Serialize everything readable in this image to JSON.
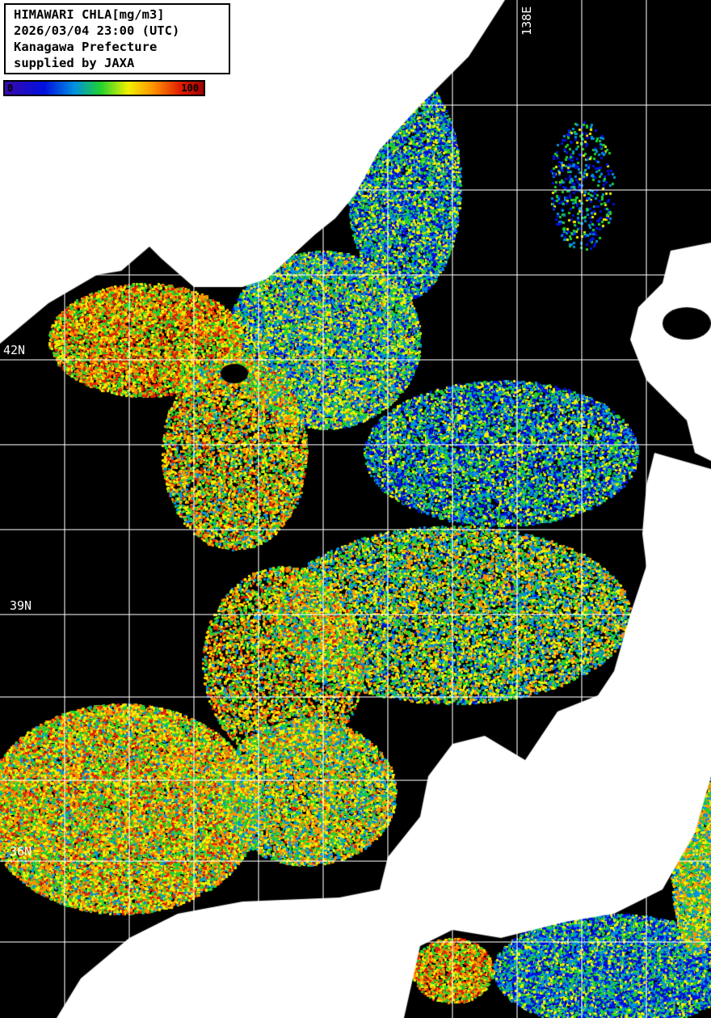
{
  "header": {
    "title": "HIMAWARI CHLA[mg/m3]",
    "datetime": "2026/03/04 23:00 (UTC)",
    "organization": "Kanagawa Prefecture",
    "credit": "supplied by JAXA"
  },
  "colorbar": {
    "min_label": "0",
    "max_label": "100",
    "colors": [
      "#3a0aa8",
      "#0010e0",
      "#0090e0",
      "#20d030",
      "#f0f000",
      "#ff9000",
      "#e02000",
      "#a00000"
    ]
  },
  "grid": {
    "lat_labels": [
      "42N",
      "39N",
      "36N"
    ],
    "lon_labels": [
      "138E"
    ]
  },
  "colors": {
    "sea_no_data": "#000000",
    "land": "#ffffff",
    "grid": "#ffffff"
  }
}
